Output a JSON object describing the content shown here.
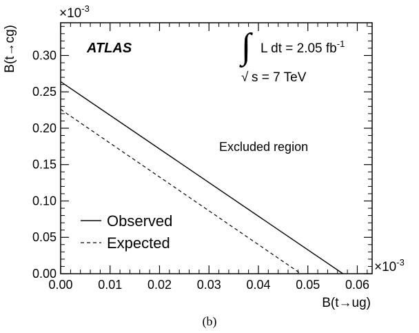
{
  "chart_data": {
    "type": "line",
    "xlabel": "B(t→ug)",
    "ylabel": "B(t→cg)",
    "x_exponent": "×10",
    "x_exponent_power": "-3",
    "y_exponent": "×10",
    "y_exponent_power": "-3",
    "xlim": [
      0.0,
      0.063
    ],
    "ylim": [
      0.0,
      0.345
    ],
    "x_ticks": [
      "0.00",
      "0.01",
      "0.02",
      "0.03",
      "0.04",
      "0.05",
      "0.06"
    ],
    "y_ticks": [
      "0.00",
      "0.05",
      "0.10",
      "0.15",
      "0.20",
      "0.25",
      "0.30"
    ],
    "x_tick_values": [
      0.0,
      0.01,
      0.02,
      0.03,
      0.04,
      0.05,
      0.06
    ],
    "y_tick_values": [
      0.0,
      0.05,
      0.1,
      0.15,
      0.2,
      0.25,
      0.3
    ],
    "series": [
      {
        "name": "Observed",
        "style": "solid",
        "x": [
          0.0,
          0.0571
        ],
        "y": [
          0.264,
          0.0
        ]
      },
      {
        "name": "Expected",
        "style": "dashed",
        "x": [
          0.0,
          0.0486
        ],
        "y": [
          0.226,
          0.0
        ]
      }
    ],
    "annotations": {
      "experiment": "ATLAS",
      "lumi_prefix": "L dt = 2.05 fb",
      "lumi_power": "-1",
      "energy": "s = 7 TeV",
      "region": "Excluded region"
    },
    "legend_position": "bottom-left",
    "grid": false
  },
  "caption": "(b)"
}
